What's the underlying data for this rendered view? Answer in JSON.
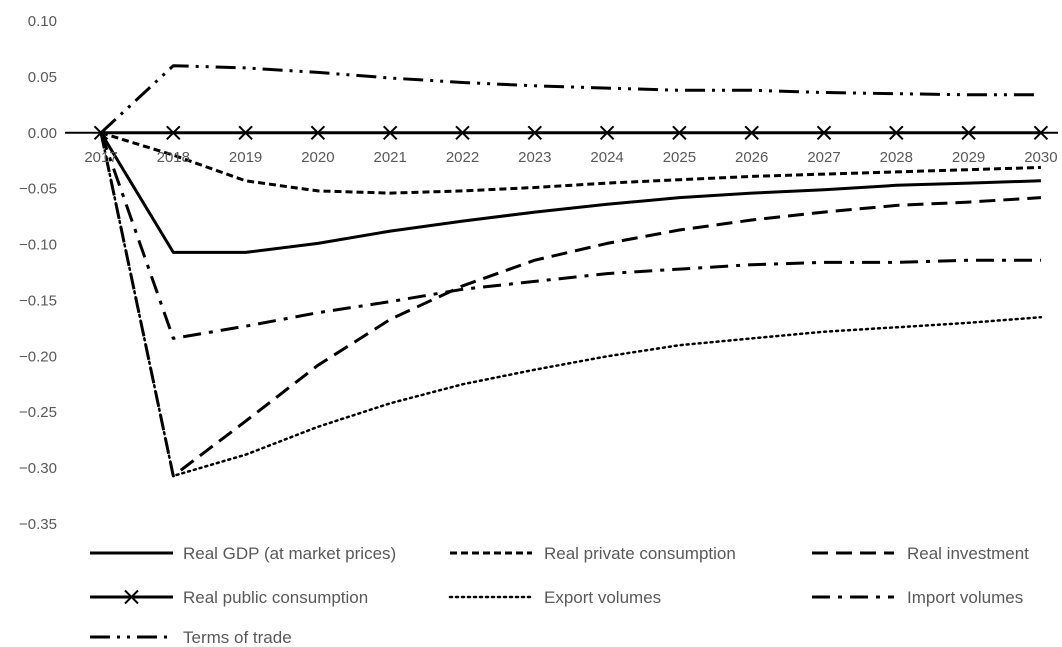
{
  "chart_data": {
    "type": "line",
    "title": "",
    "xlabel": "",
    "ylabel": "",
    "x": [
      "2017",
      "2018",
      "2019",
      "2020",
      "2021",
      "2022",
      "2023",
      "2024",
      "2025",
      "2026",
      "2027",
      "2028",
      "2029",
      "2030"
    ],
    "ylim": [
      -0.35,
      0.1
    ],
    "yticks": [
      "0.10",
      "0.05",
      "0.00",
      "−0.05",
      "−0.10",
      "−0.15",
      "−0.20",
      "−0.25",
      "−0.30",
      "−0.35"
    ],
    "grid": false,
    "legend_position": "bottom",
    "series": [
      {
        "name": "Real GDP (at market prices)",
        "style": "solid",
        "values": [
          0,
          -0.107,
          -0.107,
          -0.099,
          -0.088,
          -0.079,
          -0.071,
          -0.064,
          -0.058,
          -0.054,
          -0.051,
          -0.047,
          -0.045,
          -0.043
        ]
      },
      {
        "name": "Real private consumption",
        "style": "short-dash",
        "values": [
          0,
          -0.02,
          -0.043,
          -0.052,
          -0.054,
          -0.052,
          -0.049,
          -0.045,
          -0.042,
          -0.039,
          -0.037,
          -0.035,
          -0.033,
          -0.031
        ]
      },
      {
        "name": "Real investment",
        "style": "long-dash",
        "values": [
          0,
          -0.307,
          -0.258,
          -0.208,
          -0.167,
          -0.137,
          -0.114,
          -0.099,
          -0.087,
          -0.078,
          -0.071,
          -0.065,
          -0.062,
          -0.058
        ]
      },
      {
        "name": "Real public consumption",
        "style": "solid-x",
        "values": [
          0,
          0,
          0,
          0,
          0,
          0,
          0,
          0,
          0,
          0,
          0,
          0,
          0,
          0
        ]
      },
      {
        "name": "Export volumes",
        "style": "dotted",
        "values": [
          0,
          -0.307,
          -0.288,
          -0.263,
          -0.242,
          -0.225,
          -0.212,
          -0.2,
          -0.19,
          -0.184,
          -0.178,
          -0.174,
          -0.17,
          -0.165
        ]
      },
      {
        "name": "Import volumes",
        "style": "dash-dot",
        "values": [
          0,
          -0.184,
          -0.173,
          -0.161,
          -0.151,
          -0.14,
          -0.133,
          -0.126,
          -0.122,
          -0.118,
          -0.116,
          -0.116,
          -0.114,
          -0.114
        ]
      },
      {
        "name": "Terms of trade",
        "style": "long-dash-dot-dot",
        "values": [
          0,
          0.06,
          0.058,
          0.054,
          0.049,
          0.045,
          0.042,
          0.04,
          0.038,
          0.038,
          0.036,
          0.035,
          0.034,
          0.034
        ]
      }
    ],
    "colors": {
      "line": "#000000",
      "text": "#595959",
      "axis": "#000000"
    }
  }
}
